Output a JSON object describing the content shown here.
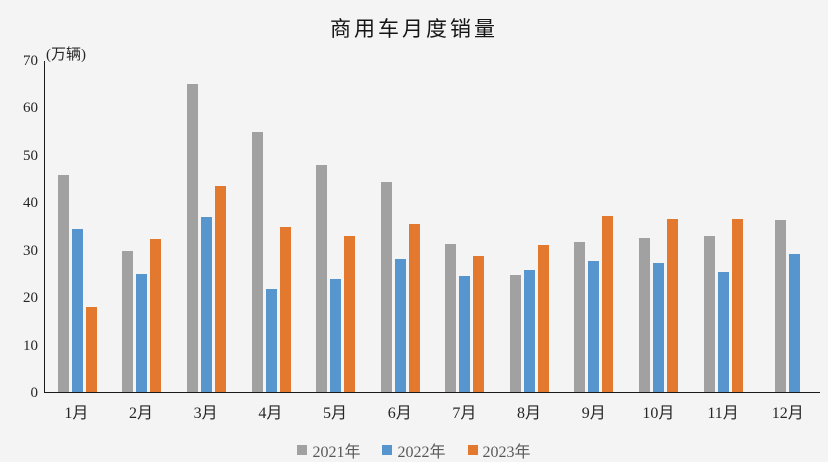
{
  "title": "商用车月度销量",
  "unit_label": "(万辆)",
  "colors": {
    "background": "#f4f4f5",
    "axis_line": "#1a1a1a",
    "tick_text": "#262626",
    "legend_text": "#595959",
    "series_2021": "#a1a1a1",
    "series_2022": "#5695ce",
    "series_2023": "#e2792f"
  },
  "chart_data": {
    "type": "bar",
    "title": "商用车月度销量",
    "ylabel": "(万辆)",
    "xlabel": "",
    "categories": [
      "1月",
      "2月",
      "3月",
      "4月",
      "5月",
      "6月",
      "7月",
      "8月",
      "9月",
      "10月",
      "11月",
      "12月"
    ],
    "series": [
      {
        "name": "2021年",
        "color": "#a1a1a1",
        "values": [
          45.9,
          29.8,
          65.2,
          54.9,
          48.0,
          44.5,
          31.2,
          24.8,
          31.7,
          32.6,
          33.0,
          36.4
        ]
      },
      {
        "name": "2022年",
        "color": "#5695ce",
        "values": [
          34.5,
          25.0,
          37.0,
          21.8,
          24.0,
          28.1,
          24.5,
          25.8,
          27.8,
          27.2,
          25.4,
          29.2
        ]
      },
      {
        "name": "2023年",
        "color": "#e2792f",
        "values": [
          18.0,
          32.4,
          43.6,
          35.0,
          33.0,
          35.5,
          28.8,
          31.0,
          37.2,
          36.5,
          36.5,
          null
        ]
      }
    ],
    "ylim": [
      0,
      70
    ],
    "yticks": [
      0,
      10,
      20,
      30,
      40,
      50,
      60,
      70
    ],
    "grid": false,
    "legend_position": "bottom"
  }
}
